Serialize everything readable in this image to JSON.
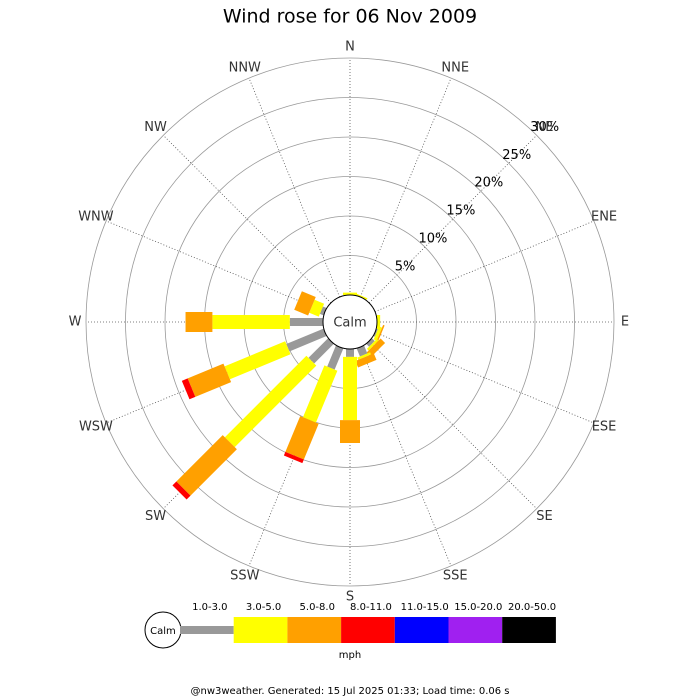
{
  "chart_data": {
    "type": "windrose",
    "title": "Wind rose for 06 Nov 2009",
    "directions": [
      "N",
      "NNE",
      "NE",
      "ENE",
      "E",
      "ESE",
      "SE",
      "SSE",
      "S",
      "SSW",
      "SW",
      "WSW",
      "W",
      "WNW",
      "NW",
      "NNW"
    ],
    "center_label": "Calm",
    "rlim": [
      0,
      30
    ],
    "rticks": [
      {
        "value": 5,
        "label": "5%"
      },
      {
        "value": 10,
        "label": "10%"
      },
      {
        "value": 15,
        "label": "15%"
      },
      {
        "value": 20,
        "label": "20%"
      },
      {
        "value": 25,
        "label": "25%"
      },
      {
        "value": 30,
        "label": "30%"
      }
    ],
    "series": [
      {
        "name": "1.0-3.0",
        "color": "#999999",
        "values": [
          0,
          0,
          0,
          0,
          0,
          0.2,
          0.5,
          1.1,
          1.0,
          2.9,
          3.5,
          5.1,
          4.2,
          0.5,
          0,
          0
        ]
      },
      {
        "name": "3.0-5.0",
        "color": "#ffff00",
        "values": [
          0.3,
          0.2,
          0,
          0,
          0.4,
          0.4,
          0.3,
          0.3,
          8.0,
          7.1,
          14.6,
          8.3,
          9.8,
          1.3,
          0,
          0
        ]
      },
      {
        "name": "5.0-8.0",
        "color": "#ffa000",
        "values": [
          0,
          0,
          0,
          0,
          0,
          0.2,
          0.8,
          0.9,
          2.9,
          4.9,
          8.3,
          4.9,
          3.4,
          1.9,
          0,
          0
        ]
      },
      {
        "name": "8.0-11.0",
        "color": "#ff0000",
        "values": [
          0,
          0,
          0,
          0,
          0,
          0,
          0,
          0,
          0,
          0.5,
          0.7,
          0.8,
          0,
          0,
          0,
          0
        ]
      },
      {
        "name": "11.0-15.0",
        "color": "#0000ff",
        "values": [
          0,
          0,
          0,
          0,
          0,
          0,
          0,
          0,
          0,
          0,
          0,
          0,
          0,
          0,
          0,
          0
        ]
      },
      {
        "name": "15.0-20.0",
        "color": "#a020f0",
        "values": [
          0,
          0,
          0,
          0,
          0,
          0,
          0,
          0,
          0,
          0,
          0,
          0,
          0,
          0,
          0,
          0
        ]
      },
      {
        "name": "20.0-50.0",
        "color": "#000000",
        "values": [
          0,
          0,
          0,
          0,
          0,
          0,
          0,
          0,
          0,
          0,
          0,
          0,
          0,
          0,
          0,
          0
        ]
      }
    ],
    "legend_calm": "Calm",
    "units": "mph",
    "footer": "@nw3weather. Generated: 15 Jul 2025 01:33; Load time: 0.06 s"
  }
}
